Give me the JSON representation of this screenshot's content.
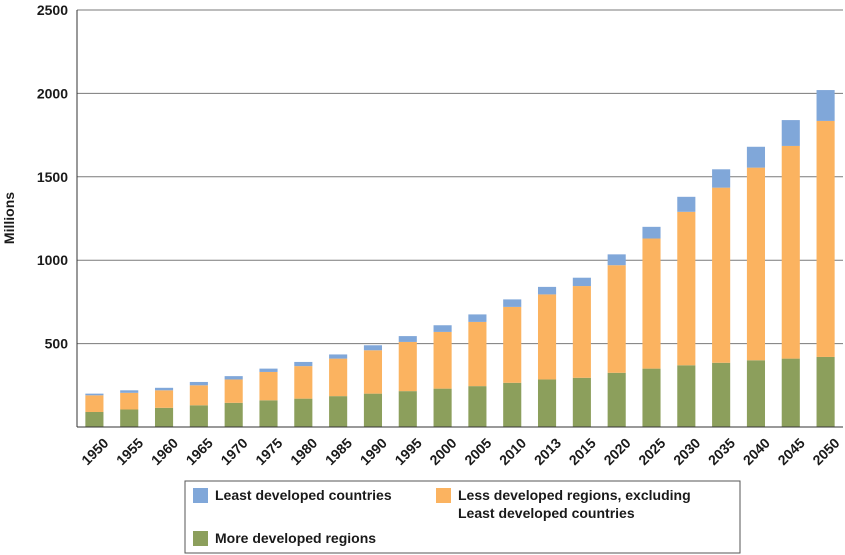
{
  "chart_data": {
    "type": "bar",
    "stacked": true,
    "title": "",
    "xlabel": "",
    "ylabel": "Millions",
    "ylim": [
      0,
      2500
    ],
    "yticks": [
      500,
      1000,
      1500,
      2000,
      2500
    ],
    "grid": true,
    "legend_position": "bottom",
    "categories": [
      "1950",
      "1955",
      "1960",
      "1965",
      "1970",
      "1975",
      "1980",
      "1985",
      "1990",
      "1995",
      "2000",
      "2005",
      "2010",
      "2013",
      "2015",
      "2020",
      "2025",
      "2030",
      "2035",
      "2040",
      "2045",
      "2050"
    ],
    "series": [
      {
        "name": "More developed regions",
        "color": "#8c9f5c",
        "values": [
          90,
          105,
          115,
          130,
          145,
          160,
          170,
          185,
          200,
          215,
          230,
          245,
          265,
          285,
          295,
          325,
          350,
          370,
          385,
          400,
          410,
          420
        ]
      },
      {
        "name": "Less developed regions, excluding Least developed countries",
        "color": "#fbb360",
        "values": [
          100,
          100,
          105,
          120,
          140,
          170,
          195,
          225,
          260,
          295,
          340,
          385,
          455,
          510,
          550,
          645,
          780,
          920,
          1050,
          1155,
          1275,
          1415
        ]
      },
      {
        "name": "Least developed countries",
        "color": "#80a7d9",
        "values": [
          10,
          15,
          15,
          20,
          20,
          20,
          25,
          25,
          30,
          35,
          40,
          45,
          45,
          45,
          50,
          65,
          70,
          90,
          110,
          125,
          155,
          185
        ]
      }
    ],
    "legend": [
      {
        "label_lines": [
          "Least developed countries"
        ],
        "color": "#80a7d9"
      },
      {
        "label_lines": [
          "Less developed regions, excluding",
          "Least developed countries"
        ],
        "color": "#fbb360"
      },
      {
        "label_lines": [
          "More developed regions"
        ],
        "color": "#8c9f5c"
      }
    ]
  }
}
